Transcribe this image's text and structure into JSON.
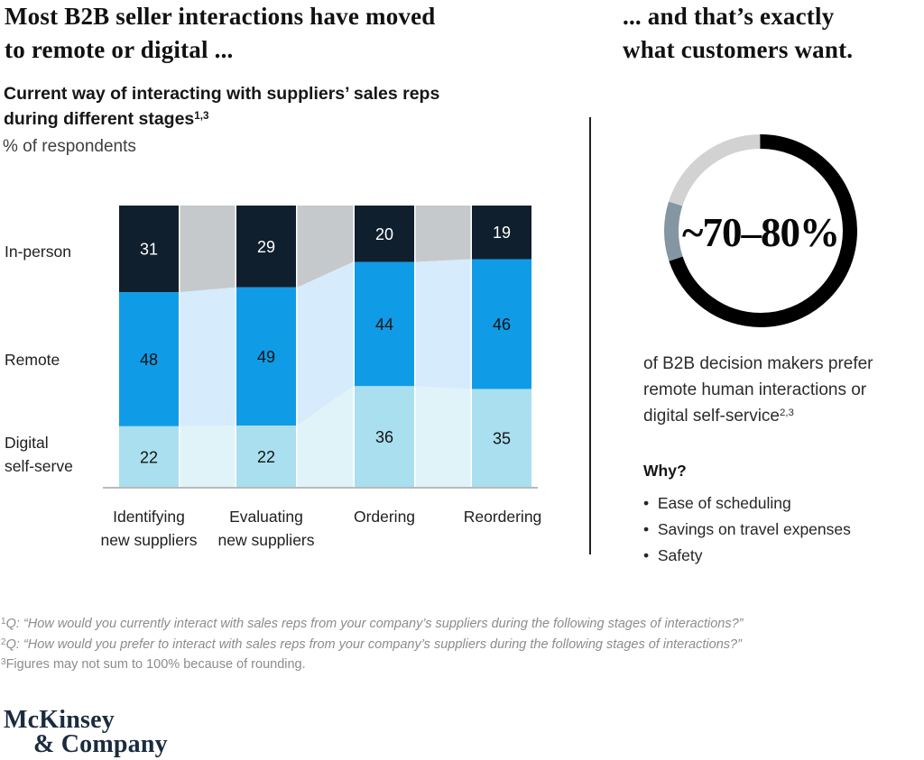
{
  "header": {
    "left_title": {
      "line1": "Most B2B seller interactions have moved",
      "line2": "to remote or digital ..."
    },
    "right_title": {
      "line1": "... and that’s exactly",
      "line2": "what customers want."
    }
  },
  "left_panel": {
    "subtitle_line1": "Current way of interacting with suppliers’ sales reps",
    "subtitle_line2": "during different stages",
    "subtitle_superscript": "1,3",
    "unit_label": "% of respondents"
  },
  "chart_data": [
    {
      "type": "bar",
      "subtype": "stacked-percent-flow",
      "title": "Current way of interacting with suppliers’ sales reps during different stages",
      "unit": "% of respondents",
      "categories": [
        "Identifying\nnew suppliers",
        "Evaluating\nnew suppliers",
        "Ordering",
        "Reordering"
      ],
      "row_labels": [
        "In-person",
        "Remote",
        "Digital\nself-serve"
      ],
      "series": [
        {
          "name": "In-person",
          "values": [
            31,
            29,
            20,
            19
          ],
          "color": "#101f2d",
          "flow_color": "#c6c9cb",
          "label_color": "#ffffff"
        },
        {
          "name": "Remote",
          "values": [
            48,
            49,
            44,
            46
          ],
          "color": "#109be6",
          "flow_color": "#d6ebfb",
          "label_color": "#141414"
        },
        {
          "name": "Digital self-serve",
          "values": [
            22,
            22,
            36,
            35
          ],
          "color": "#a9dfee",
          "flow_color": "#e0f3f8",
          "label_color": "#141414"
        }
      ],
      "ylim": [
        0,
        100
      ],
      "grid": false,
      "legend": "row-labels-left",
      "axis_color": "#b7babc"
    },
    {
      "type": "pie",
      "subtype": "donut",
      "label": "~70–80%",
      "segments": [
        {
          "name": "black-segment",
          "value": 70,
          "color": "#000000"
        },
        {
          "name": "slate-segment",
          "value": 10,
          "color": "#8496a2"
        },
        {
          "name": "light-gray-segment",
          "value": 20,
          "color": "#d2d2d2"
        }
      ]
    }
  ],
  "right_panel": {
    "stat_caption": {
      "line1": "of B2B decision makers prefer",
      "line2": "remote human interactions or",
      "line3": "digital self-service",
      "superscript": "2,3"
    },
    "why": {
      "heading": "Why?",
      "bullets": [
        "Ease of scheduling",
        "Savings on travel expenses",
        "Safety"
      ]
    }
  },
  "footnotes": [
    {
      "sup": "1",
      "text": "Q: “How would you currently interact with sales reps from your company’s suppliers during the following stages of interactions?”",
      "italic": true
    },
    {
      "sup": "2",
      "text": "Q: “How would you prefer to interact with sales reps from your company’s suppliers during the following stages of interactions?”",
      "italic": true
    },
    {
      "sup": "3",
      "text": "Figures may not sum to 100% because of rounding.",
      "italic": false
    }
  ],
  "logo": {
    "line1": "McKinsey",
    "line2": "& Company"
  }
}
